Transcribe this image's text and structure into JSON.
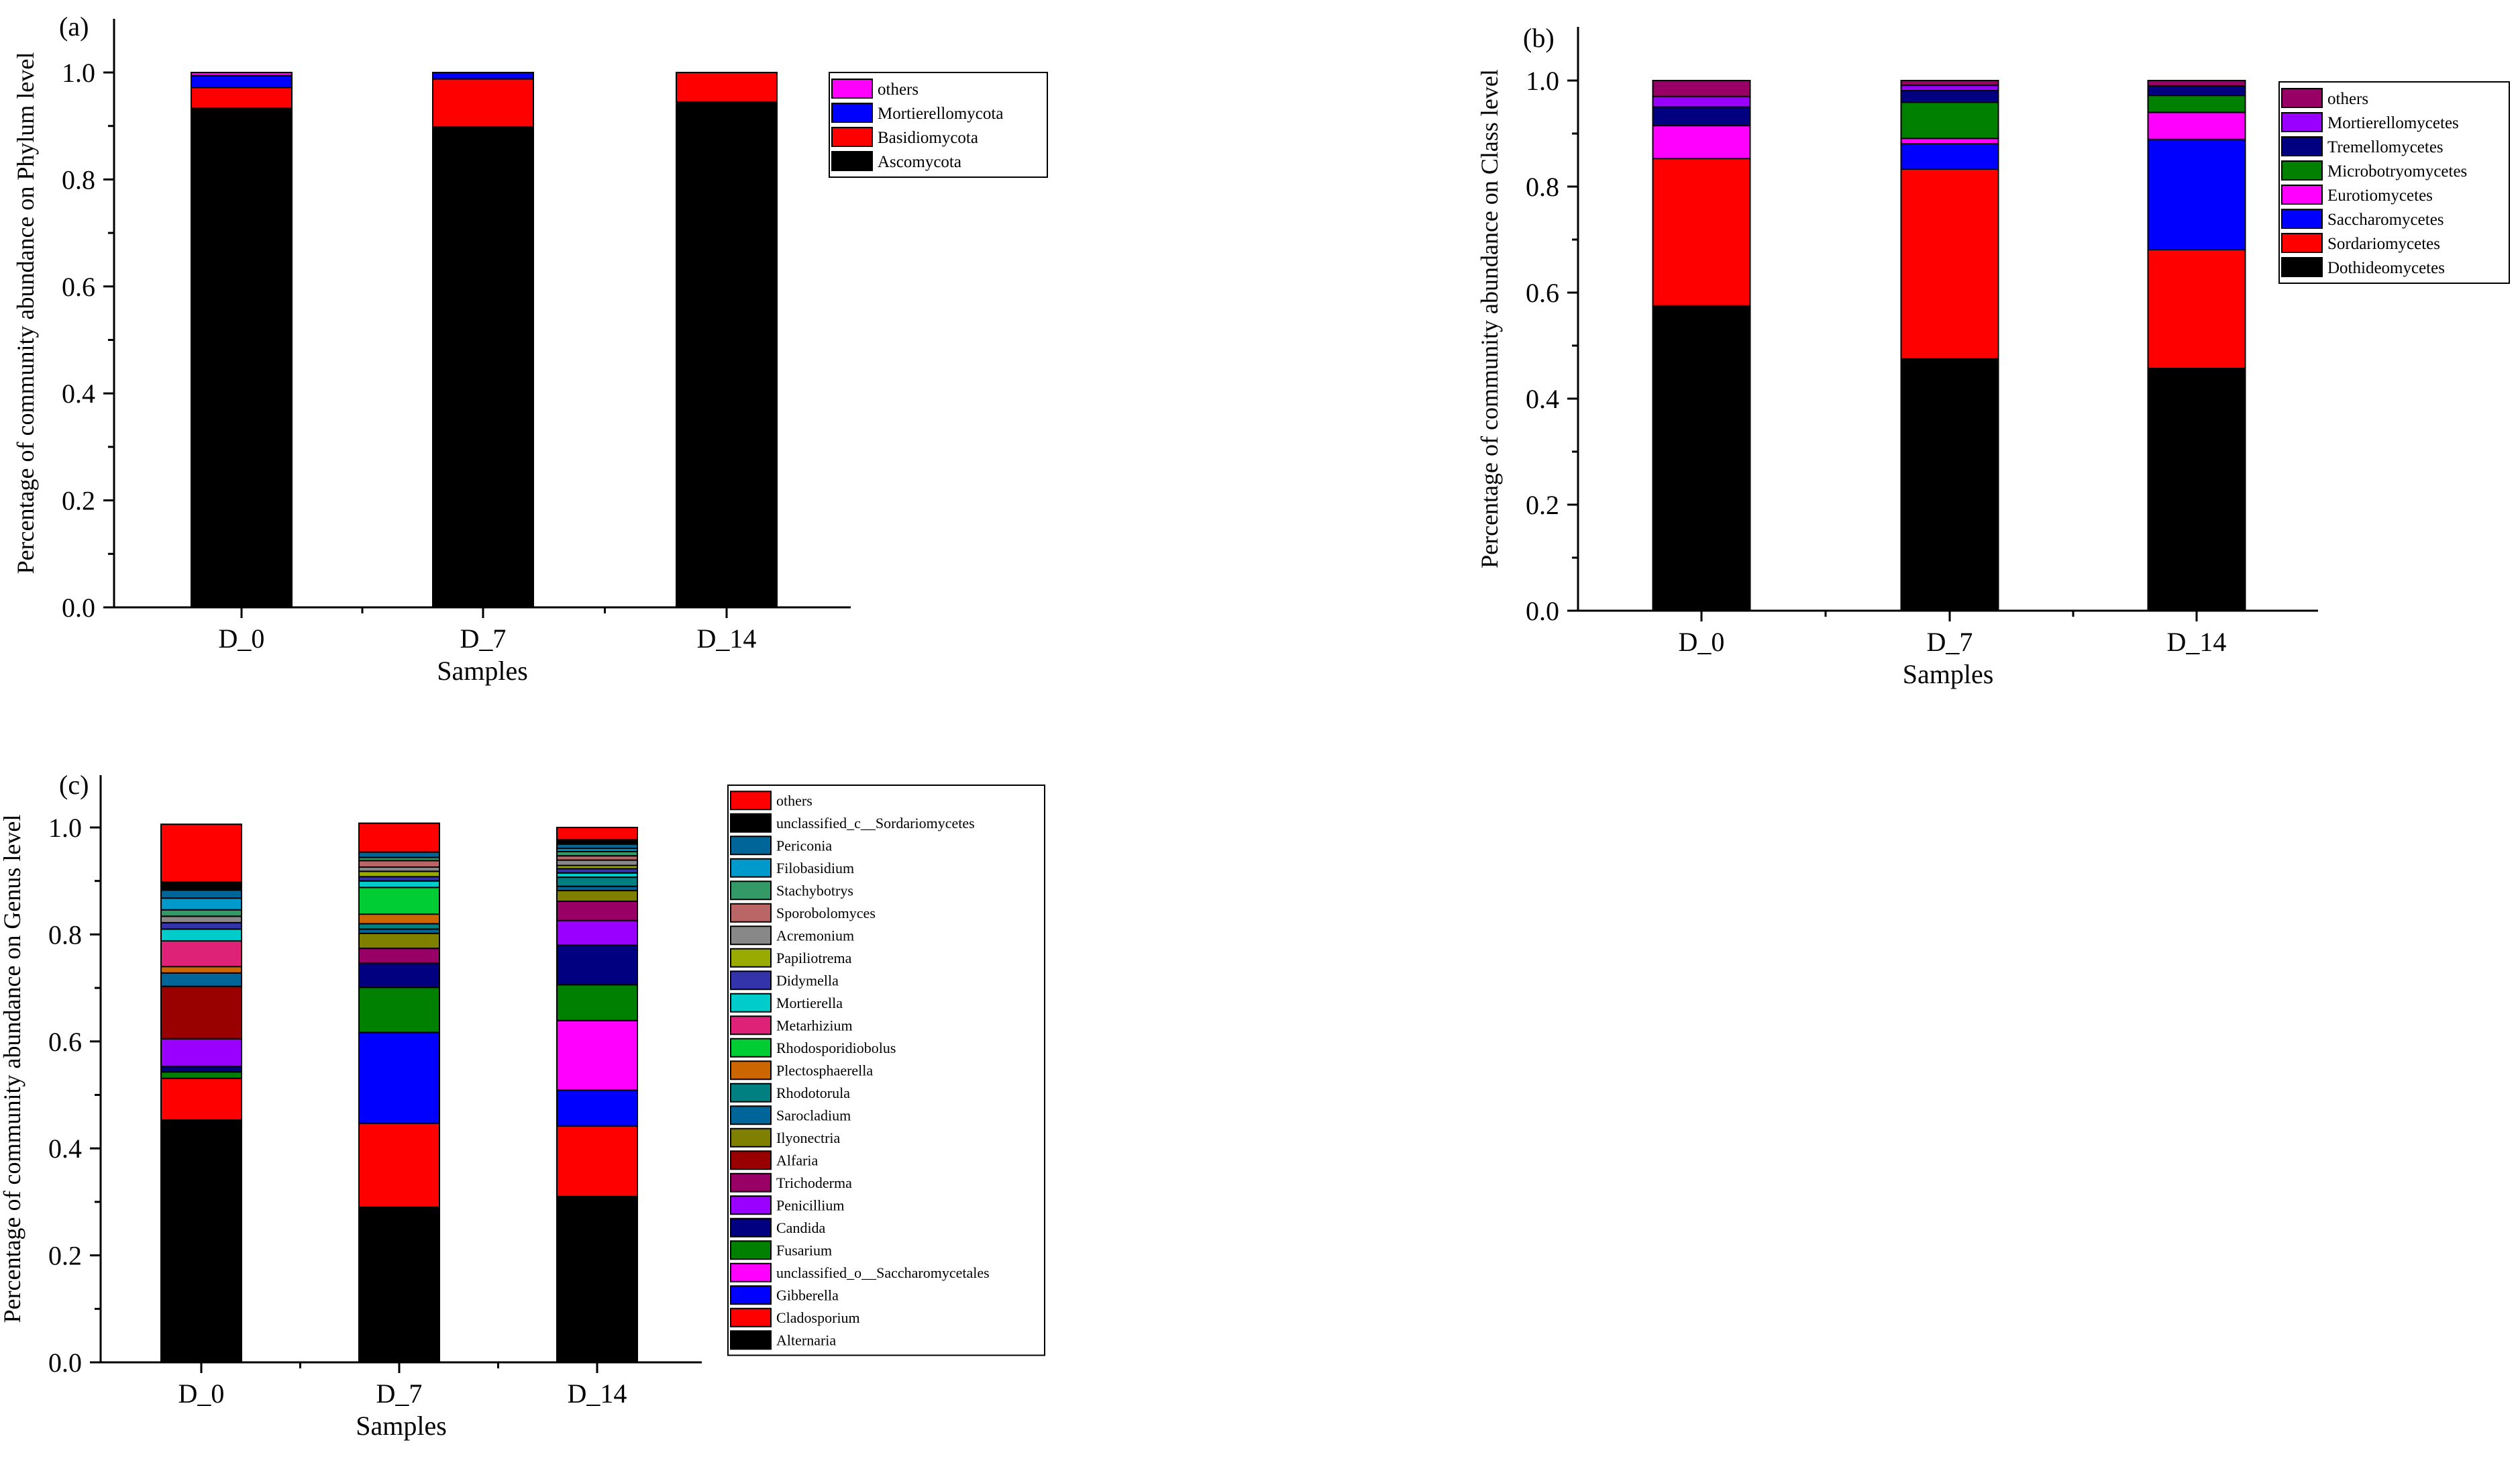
{
  "chart_data": [
    {
      "panel_label": "(a)",
      "type": "bar",
      "stacked": true,
      "categories": [
        "D_0",
        "D_7",
        "D_14"
      ],
      "xlabel": "Samples",
      "ylabel": "Percentage of community abundance on Phylum level",
      "ylim": [
        0,
        1.0
      ],
      "yticks": [
        "0.0",
        "0.2",
        "0.4",
        "0.6",
        "0.8",
        "1.0"
      ],
      "legend": "top-right",
      "series": [
        {
          "name": "Ascomycota",
          "color": "#000000",
          "values": [
            0.933,
            0.898,
            0.945
          ]
        },
        {
          "name": "Basidiomycota",
          "color": "#ff0000",
          "values": [
            0.039,
            0.09,
            0.055
          ]
        },
        {
          "name": "Mortierellomycota",
          "color": "#0000ff",
          "values": [
            0.022,
            0.012,
            0.0
          ]
        },
        {
          "name": "others",
          "color": "#ff00ff",
          "values": [
            0.006,
            0.0,
            0.0
          ]
        }
      ]
    },
    {
      "panel_label": "(b)",
      "type": "bar",
      "stacked": true,
      "categories": [
        "D_0",
        "D_7",
        "D_14"
      ],
      "xlabel": "Samples",
      "ylabel": "Percentage of community abundance on Class level",
      "ylim": [
        0,
        1.0
      ],
      "yticks": [
        "0.0",
        "0.2",
        "0.4",
        "0.6",
        "0.8",
        "1.0"
      ],
      "legend": "top-right",
      "series": [
        {
          "name": "Dothideomycetes",
          "color": "#000000",
          "values": [
            0.575,
            0.475,
            0.457
          ]
        },
        {
          "name": "Sordariomycetes",
          "color": "#ff0000",
          "values": [
            0.278,
            0.358,
            0.224
          ]
        },
        {
          "name": "Saccharomycetes",
          "color": "#0000ff",
          "values": [
            0.0,
            0.048,
            0.208
          ]
        },
        {
          "name": "Eurotiomycetes",
          "color": "#ff00ff",
          "values": [
            0.062,
            0.01,
            0.051
          ]
        },
        {
          "name": "Microbotryomycetes",
          "color": "#008000",
          "values": [
            0.0,
            0.068,
            0.032
          ]
        },
        {
          "name": "Tremellomycetes",
          "color": "#000080",
          "values": [
            0.035,
            0.022,
            0.018
          ]
        },
        {
          "name": "Mortierellomycetes",
          "color": "#9900ff",
          "values": [
            0.02,
            0.01,
            0.0
          ]
        },
        {
          "name": "others",
          "color": "#990066",
          "values": [
            0.03,
            0.009,
            0.01
          ]
        }
      ]
    },
    {
      "panel_label": "(c)",
      "type": "bar",
      "stacked": true,
      "categories": [
        "D_0",
        "D_7",
        "D_14"
      ],
      "xlabel": "Samples",
      "ylabel": "Percentage of community abundance on Genus level",
      "ylim": [
        0,
        1.0
      ],
      "yticks": [
        "0.0",
        "0.2",
        "0.4",
        "0.6",
        "0.8",
        "1.0"
      ],
      "legend": "top-right",
      "series": [
        {
          "name": "Alternaria",
          "color": "#000000",
          "values": [
            0.453,
            0.29,
            0.31
          ]
        },
        {
          "name": "Cladosporium",
          "color": "#ff0000",
          "values": [
            0.078,
            0.157,
            0.132
          ]
        },
        {
          "name": "Gibberella",
          "color": "#0000ff",
          "values": [
            0.0,
            0.17,
            0.067
          ]
        },
        {
          "name": "unclassified_o__Saccharomycetales",
          "color": "#ff00ff",
          "values": [
            0.0,
            0.0,
            0.13
          ]
        },
        {
          "name": "Fusarium",
          "color": "#008000",
          "values": [
            0.012,
            0.084,
            0.067
          ]
        },
        {
          "name": "Candida",
          "color": "#000080",
          "values": [
            0.01,
            0.045,
            0.074
          ]
        },
        {
          "name": "Penicillium",
          "color": "#9900ff",
          "values": [
            0.052,
            0.0,
            0.046
          ]
        },
        {
          "name": "Trichoderma",
          "color": "#990066",
          "values": [
            0.0,
            0.028,
            0.036
          ]
        },
        {
          "name": "Alfaria",
          "color": "#990000",
          "values": [
            0.098,
            0.0,
            0.0
          ]
        },
        {
          "name": "Ilyonectria",
          "color": "#808000",
          "values": [
            0.0,
            0.028,
            0.02
          ]
        },
        {
          "name": "Sarocladium",
          "color": "#006699",
          "values": [
            0.025,
            0.008,
            0.008
          ]
        },
        {
          "name": "Rhodotorula",
          "color": "#008080",
          "values": [
            0.0,
            0.01,
            0.017
          ]
        },
        {
          "name": "Plectosphaerella",
          "color": "#cc6600",
          "values": [
            0.012,
            0.018,
            0.0
          ]
        },
        {
          "name": "Rhodosporidiobolus",
          "color": "#00cc33",
          "values": [
            0.0,
            0.05,
            0.0
          ]
        },
        {
          "name": "Metarhizium",
          "color": "#dd2277",
          "values": [
            0.048,
            0.0,
            0.0
          ]
        },
        {
          "name": "Mortierella",
          "color": "#00cccc",
          "values": [
            0.022,
            0.012,
            0.008
          ]
        },
        {
          "name": "Didymella",
          "color": "#3333aa",
          "values": [
            0.012,
            0.008,
            0.008
          ]
        },
        {
          "name": "Papiliotrema",
          "color": "#99aa00",
          "values": [
            0.0,
            0.01,
            0.006
          ]
        },
        {
          "name": "Acremonium",
          "color": "#888888",
          "values": [
            0.012,
            0.008,
            0.01
          ]
        },
        {
          "name": "Sporobolomyces",
          "color": "#bb6666",
          "values": [
            0.0,
            0.012,
            0.008
          ]
        },
        {
          "name": "Stachybotrys",
          "color": "#339966",
          "values": [
            0.012,
            0.006,
            0.008
          ]
        },
        {
          "name": "Filobasidium",
          "color": "#0099cc",
          "values": [
            0.022,
            0.0,
            0.006
          ]
        },
        {
          "name": "Periconia",
          "color": "#006699",
          "values": [
            0.015,
            0.01,
            0.008
          ]
        },
        {
          "name": "unclassified_c__Sordariomycetes",
          "color": "#000000",
          "values": [
            0.015,
            0.0,
            0.008
          ]
        },
        {
          "name": "others",
          "color": "#ff0000",
          "values": [
            0.108,
            0.054,
            0.023
          ]
        }
      ]
    }
  ]
}
